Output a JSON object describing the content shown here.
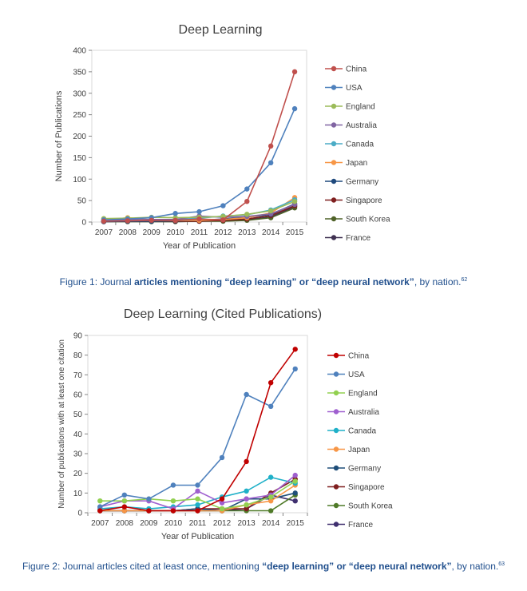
{
  "chart_data": [
    {
      "type": "line",
      "title": "Deep Learning",
      "xlabel": "Year of Publication",
      "ylabel": "Number of Publications",
      "x": [
        "2007",
        "2008",
        "2009",
        "2010",
        "2011",
        "2012",
        "2013",
        "2014",
        "2015"
      ],
      "ylim": [
        0,
        400
      ],
      "yticks": [
        0,
        50,
        100,
        150,
        200,
        250,
        300,
        350,
        400
      ],
      "grid": false,
      "legend": "right",
      "series": [
        {
          "name": "China",
          "color": "#c0504d",
          "values": [
            2,
            3,
            4,
            4,
            7,
            5,
            48,
            177,
            350
          ]
        },
        {
          "name": "USA",
          "color": "#4f81bd",
          "values": [
            5,
            7,
            10,
            20,
            24,
            38,
            77,
            138,
            264
          ]
        },
        {
          "name": "England",
          "color": "#9bbb59",
          "values": [
            8,
            9,
            11,
            10,
            11,
            13,
            18,
            26,
            48
          ]
        },
        {
          "name": "Australia",
          "color": "#8064a2",
          "values": [
            3,
            5,
            6,
            6,
            14,
            11,
            13,
            19,
            41
          ]
        },
        {
          "name": "Canada",
          "color": "#4bacc6",
          "values": [
            3,
            4,
            5,
            6,
            9,
            14,
            17,
            28,
            52
          ]
        },
        {
          "name": "Japan",
          "color": "#f79646",
          "values": [
            4,
            10,
            5,
            4,
            4,
            6,
            10,
            21,
            57
          ]
        },
        {
          "name": "Germany",
          "color": "#1f497d",
          "values": [
            1,
            2,
            2,
            3,
            4,
            7,
            11,
            18,
            42
          ]
        },
        {
          "name": "Singapore",
          "color": "#7f1f1f",
          "values": [
            1,
            2,
            2,
            2,
            2,
            4,
            7,
            15,
            38
          ]
        },
        {
          "name": "South Korea",
          "color": "#4f6228",
          "values": [
            1,
            1,
            1,
            1,
            2,
            2,
            4,
            10,
            33
          ]
        },
        {
          "name": "France",
          "color": "#3f3151",
          "values": [
            1,
            1,
            1,
            1,
            2,
            3,
            5,
            12,
            36
          ]
        }
      ]
    },
    {
      "type": "line",
      "title": "Deep Learning (Cited Publications)",
      "xlabel": "Year of Publication",
      "ylabel": "Number of publications with at least one citation",
      "x": [
        "2007",
        "2008",
        "2009",
        "2010",
        "2011",
        "2012",
        "2013",
        "2014",
        "2015"
      ],
      "ylim": [
        0,
        90
      ],
      "yticks": [
        0,
        10,
        20,
        30,
        40,
        50,
        60,
        70,
        80,
        90
      ],
      "grid": false,
      "legend": "right",
      "series": [
        {
          "name": "China",
          "color": "#c00000",
          "values": [
            1,
            3,
            1,
            1,
            1,
            7,
            26,
            66,
            83
          ]
        },
        {
          "name": "USA",
          "color": "#4f81bd",
          "values": [
            3,
            9,
            7,
            14,
            14,
            28,
            60,
            54,
            73
          ]
        },
        {
          "name": "England",
          "color": "#92d050",
          "values": [
            6,
            6,
            7,
            6,
            7,
            2,
            4,
            8,
            16
          ]
        },
        {
          "name": "Australia",
          "color": "#9f5fcf",
          "values": [
            3,
            6,
            6,
            2,
            11,
            5,
            7,
            9,
            19
          ]
        },
        {
          "name": "Canada",
          "color": "#1fb0c8",
          "values": [
            2,
            3,
            2,
            3,
            4,
            8,
            11,
            18,
            15
          ]
        },
        {
          "name": "Japan",
          "color": "#f79646",
          "values": [
            1,
            1,
            1,
            1,
            1,
            1,
            4,
            6,
            14
          ]
        },
        {
          "name": "Germany",
          "color": "#1f4e79",
          "values": [
            1,
            1,
            1,
            1,
            2,
            1,
            7,
            7,
            10
          ]
        },
        {
          "name": "Singapore",
          "color": "#7f1f1f",
          "values": [
            1,
            1,
            1,
            1,
            2,
            2,
            2,
            10,
            17
          ]
        },
        {
          "name": "South Korea",
          "color": "#4f7a28",
          "values": [
            1,
            1,
            1,
            1,
            1,
            1,
            1,
            1,
            9
          ]
        },
        {
          "name": "France",
          "color": "#3f2f6f",
          "values": [
            1,
            1,
            1,
            1,
            1,
            1,
            2,
            9,
            6
          ]
        }
      ]
    }
  ],
  "captions": [
    {
      "prefix": "Figure 1: Journal ",
      "bold": "articles mentioning “deep learning” or “deep neural network”",
      "suffix": ", by nation.",
      "ref": "62"
    },
    {
      "prefix": "Figure 2: Journal articles cited at least once, mentioning ",
      "bold": "“deep learning” or “deep neural network”",
      "suffix": ", by nation.",
      "ref": "63"
    }
  ]
}
